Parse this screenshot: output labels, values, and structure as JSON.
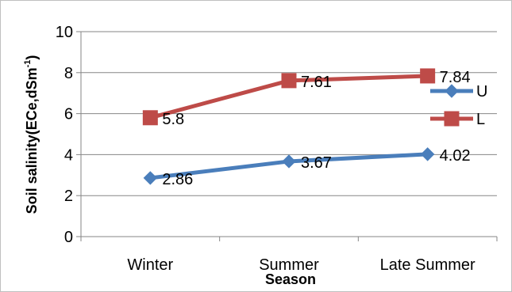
{
  "chart_data": {
    "type": "line",
    "categories": [
      "Winter",
      "Summer",
      "Late Summer"
    ],
    "series": [
      {
        "name": "U",
        "values": [
          2.86,
          3.67,
          4.02
        ],
        "color": "#4a7ebb",
        "marker": "diamond"
      },
      {
        "name": "L",
        "values": [
          5.8,
          7.61,
          7.84
        ],
        "color": "#be4b48",
        "marker": "square"
      }
    ],
    "data_labels": {
      "U": [
        "2.86",
        "3.67",
        "4.02"
      ],
      "L": [
        "5.8",
        "7.61",
        "7.84"
      ]
    },
    "xlabel": "Season",
    "ylabel": "Soil salinity(ECe,dSm-1)",
    "ylabel_parts": {
      "main": "Soil salinity(ECe,dSm",
      "sup": "-1",
      "tail": ")"
    },
    "ylim": [
      0,
      10
    ],
    "yticks": [
      "0",
      "2",
      "4",
      "6",
      "8",
      "10"
    ],
    "grid": true,
    "legend_position": "right"
  }
}
